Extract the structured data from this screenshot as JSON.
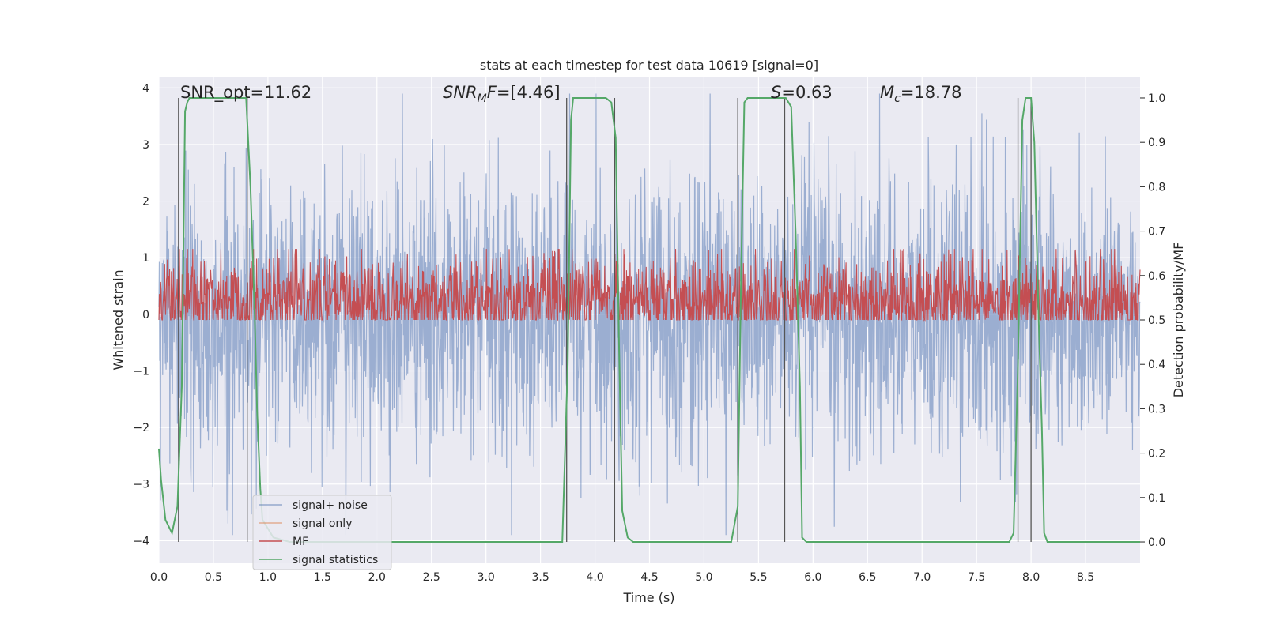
{
  "chart_data": {
    "type": "line",
    "title": "stats at each timestep for test data 10619 [signal=0]",
    "xlabel": "Time (s)",
    "ylabel": "Whitened strain",
    "y2label": "Detection probability/MF",
    "xlim": [
      0,
      9
    ],
    "ylim": [
      -4.4,
      4.2
    ],
    "y2lim": [
      -0.048,
      1.048
    ],
    "xticks": [
      0.0,
      0.5,
      1.0,
      1.5,
      2.0,
      2.5,
      3.0,
      3.5,
      4.0,
      4.5,
      5.0,
      5.5,
      6.0,
      6.5,
      7.0,
      7.5,
      8.0,
      8.5
    ],
    "xtick_labels": [
      "0.0",
      "0.5",
      "1.0",
      "1.5",
      "2.0",
      "2.5",
      "3.0",
      "3.5",
      "4.0",
      "4.5",
      "5.0",
      "5.5",
      "6.0",
      "6.5",
      "7.0",
      "7.5",
      "8.0",
      "8.5"
    ],
    "yticks": [
      4,
      3,
      2,
      1,
      0,
      -1,
      -2,
      -3,
      -4
    ],
    "ytick_labels": [
      "4",
      "3",
      "2",
      "1",
      "0",
      "−1",
      "−2",
      "−3",
      "−4"
    ],
    "y2ticks": [
      1.0,
      0.9,
      0.8,
      0.7,
      0.6,
      0.5,
      0.4,
      0.3,
      0.2,
      0.1,
      0.0
    ],
    "y2tick_labels": [
      "1.0",
      "0.9",
      "0.8",
      "0.7",
      "0.6",
      "0.5",
      "0.4",
      "0.3",
      "0.2",
      "0.1",
      "0.0"
    ],
    "annotations": {
      "snr_opt": "SNR_opt=11.62",
      "snr_mf_italic": "SNR",
      "snr_mf_sub": "M",
      "snr_mf_italic2": "F",
      "snr_mf_rest": "=[4.46]",
      "s_italic": "S",
      "s_rest": "=0.63",
      "mc_italic": "M",
      "mc_sub": "c",
      "mc_rest": "=18.78"
    },
    "legend": {
      "location": "lower-left",
      "entries": [
        {
          "label": "signal+ noise",
          "color": "#4c72b0"
        },
        {
          "label": "signal only",
          "color": "#dd8452"
        },
        {
          "label": "MF",
          "color": "#c44e52"
        },
        {
          "label": "signal statistics",
          "color": "#55a868"
        }
      ]
    },
    "series": [
      {
        "name": "signal+ noise",
        "axis": "left",
        "color": "#4c72b0",
        "kind": "noise",
        "amplitude_range": [
          -3.9,
          3.9
        ]
      },
      {
        "name": "MF",
        "axis": "right",
        "color": "#c44e52",
        "kind": "noise",
        "center": 0.545,
        "spread": 0.05
      },
      {
        "name": "signal statistics",
        "axis": "right",
        "color": "#55a868",
        "x": [
          0.0,
          0.02,
          0.06,
          0.12,
          0.17,
          0.21,
          0.24,
          0.26,
          0.28,
          0.32,
          0.4,
          0.6,
          0.8,
          0.84,
          0.88,
          0.9,
          0.93,
          0.95,
          1.0,
          1.05,
          1.2,
          1.5,
          2.0,
          3.0,
          3.5,
          3.7,
          3.75,
          3.78,
          3.8,
          3.9,
          4.0,
          4.1,
          4.15,
          4.19,
          4.22,
          4.25,
          4.3,
          4.35,
          4.5,
          5.0,
          5.25,
          5.31,
          5.34,
          5.37,
          5.4,
          5.6,
          5.75,
          5.8,
          5.84,
          5.88,
          5.9,
          5.94,
          6.0,
          7.0,
          7.8,
          7.84,
          7.88,
          7.92,
          7.95,
          8.0,
          8.03,
          8.07,
          8.1,
          8.12,
          8.15,
          8.5,
          9.0
        ],
        "y": [
          0.21,
          0.14,
          0.05,
          0.02,
          0.08,
          0.35,
          0.97,
          0.99,
          1.0,
          1.0,
          1.0,
          1.0,
          1.0,
          0.8,
          0.5,
          0.3,
          0.12,
          0.05,
          0.03,
          0.01,
          0.0,
          0.0,
          0.0,
          0.0,
          0.0,
          0.0,
          0.4,
          0.95,
          1.0,
          1.0,
          1.0,
          1.0,
          0.99,
          0.91,
          0.45,
          0.07,
          0.01,
          0.0,
          0.0,
          0.0,
          0.0,
          0.08,
          0.6,
          0.99,
          1.0,
          1.0,
          1.0,
          0.98,
          0.7,
          0.35,
          0.01,
          0.0,
          0.0,
          0.0,
          0.0,
          0.02,
          0.4,
          0.95,
          1.0,
          1.0,
          0.9,
          0.5,
          0.25,
          0.02,
          0.0,
          0.0,
          0.0
        ]
      }
    ],
    "vertical_lines_x": [
      0.18,
      0.81,
      3.74,
      4.18,
      5.31,
      5.74,
      7.88,
      8.0
    ]
  }
}
